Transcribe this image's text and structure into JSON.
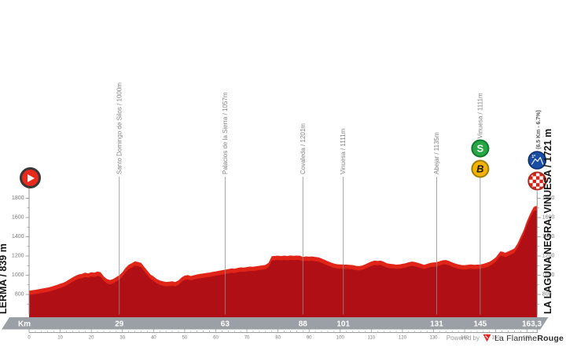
{
  "stage": {
    "start_label": "LERMA / 839 m",
    "finish_label": "LA LAGUNA NEGRA. VINUESA / 1721 m",
    "km_bar_label": "Km",
    "total_km_label": "163,3"
  },
  "footer": {
    "powered_by": "Powered by",
    "brand_regular": "La Flamme",
    "brand_bold": "Rouge"
  },
  "chart_data": {
    "type": "area",
    "title": "",
    "xlabel": "Km",
    "ylabel": "elevation (m)",
    "x_range_km": [
      0,
      163.3
    ],
    "ylim": [
      600,
      1900
    ],
    "y_ticks": [
      800,
      1000,
      1200,
      1400,
      1600,
      1800
    ],
    "x_major_ticks_km": [
      0,
      10,
      20,
      30,
      40,
      50,
      60,
      70,
      80,
      90,
      100,
      110,
      120,
      130,
      140,
      150,
      160
    ],
    "start": {
      "name": "Lerma",
      "elevation_m": 839,
      "km": 0
    },
    "finish": {
      "name": "La Laguna Negra. Vinuesa",
      "elevation_m": 1721,
      "km": 163.3,
      "final_climb_note": "(6.5 Km - 6.7%)"
    },
    "waypoints": [
      {
        "km": 29,
        "bar_label": "29",
        "label": "Santo Domingo de Silos / 1000m",
        "elevation_m": 1000,
        "icons": []
      },
      {
        "km": 63,
        "bar_label": "63",
        "label": "Palacios de la Sierra / 1057m",
        "elevation_m": 1057,
        "icons": []
      },
      {
        "km": 88,
        "bar_label": "88",
        "label": "Covaleda / 1201m",
        "elevation_m": 1201,
        "icons": []
      },
      {
        "km": 101,
        "bar_label": "101",
        "label": "Vinuesa / 1111m",
        "elevation_m": 1111,
        "icons": []
      },
      {
        "km": 131,
        "bar_label": "131",
        "label": "Abejar / 1135m",
        "elevation_m": 1135,
        "icons": []
      },
      {
        "km": 145,
        "bar_label": "145",
        "label": "Vinuesa / 1111m",
        "elevation_m": 1111,
        "icons": [
          "sprint",
          "bonus"
        ]
      },
      {
        "km": 163.3,
        "bar_label": "163,3",
        "label": "",
        "elevation_m": 1721,
        "icons": [
          "kom-cat1",
          "finish"
        ],
        "note": "(6.5 Km - 6.7%)",
        "kom_category": "1ª"
      }
    ],
    "profile_points": [
      [
        0,
        839
      ],
      [
        1,
        844
      ],
      [
        2,
        848
      ],
      [
        3,
        854
      ],
      [
        4,
        860
      ],
      [
        5,
        866
      ],
      [
        6,
        872
      ],
      [
        7,
        880
      ],
      [
        8,
        890
      ],
      [
        9,
        900
      ],
      [
        10,
        912
      ],
      [
        11,
        922
      ],
      [
        12,
        938
      ],
      [
        13,
        958
      ],
      [
        14,
        978
      ],
      [
        15,
        996
      ],
      [
        16,
        1008
      ],
      [
        17,
        1014
      ],
      [
        18,
        1026
      ],
      [
        19,
        1020
      ],
      [
        20,
        1032
      ],
      [
        21,
        1026
      ],
      [
        22,
        1038
      ],
      [
        23,
        1030
      ],
      [
        24,
        988
      ],
      [
        25,
        962
      ],
      [
        26,
        950
      ],
      [
        27,
        960
      ],
      [
        28,
        980
      ],
      [
        29,
        1000
      ],
      [
        30,
        1032
      ],
      [
        31,
        1076
      ],
      [
        32,
        1108
      ],
      [
        33,
        1124
      ],
      [
        34,
        1145
      ],
      [
        35,
        1138
      ],
      [
        36,
        1128
      ],
      [
        37,
        1088
      ],
      [
        38,
        1048
      ],
      [
        39,
        1008
      ],
      [
        40,
        988
      ],
      [
        41,
        962
      ],
      [
        42,
        946
      ],
      [
        43,
        936
      ],
      [
        44,
        930
      ],
      [
        45,
        932
      ],
      [
        46,
        936
      ],
      [
        47,
        930
      ],
      [
        48,
        946
      ],
      [
        49,
        976
      ],
      [
        50,
        996
      ],
      [
        51,
        1002
      ],
      [
        52,
        992
      ],
      [
        53,
        1000
      ],
      [
        54,
        1008
      ],
      [
        55,
        1014
      ],
      [
        56,
        1018
      ],
      [
        57,
        1024
      ],
      [
        58,
        1028
      ],
      [
        59,
        1034
      ],
      [
        60,
        1040
      ],
      [
        61,
        1046
      ],
      [
        62,
        1052
      ],
      [
        63,
        1057
      ],
      [
        64,
        1063
      ],
      [
        65,
        1070
      ],
      [
        66,
        1068
      ],
      [
        67,
        1075
      ],
      [
        68,
        1082
      ],
      [
        69,
        1080
      ],
      [
        70,
        1085
      ],
      [
        71,
        1090
      ],
      [
        72,
        1088
      ],
      [
        73,
        1093
      ],
      [
        74,
        1098
      ],
      [
        75,
        1102
      ],
      [
        76,
        1108
      ],
      [
        77,
        1130
      ],
      [
        78,
        1198
      ],
      [
        79,
        1201
      ],
      [
        80,
        1203
      ],
      [
        81,
        1199
      ],
      [
        82,
        1204
      ],
      [
        83,
        1200
      ],
      [
        84,
        1205
      ],
      [
        85,
        1202
      ],
      [
        86,
        1204
      ],
      [
        87,
        1203
      ],
      [
        88,
        1190
      ],
      [
        89,
        1196
      ],
      [
        90,
        1193
      ],
      [
        91,
        1195
      ],
      [
        92,
        1190
      ],
      [
        93,
        1185
      ],
      [
        94,
        1175
      ],
      [
        95,
        1160
      ],
      [
        96,
        1146
      ],
      [
        97,
        1132
      ],
      [
        98,
        1122
      ],
      [
        99,
        1114
      ],
      [
        100,
        1112
      ],
      [
        101,
        1111
      ],
      [
        102,
        1110
      ],
      [
        103,
        1108
      ],
      [
        104,
        1105
      ],
      [
        105,
        1098
      ],
      [
        106,
        1095
      ],
      [
        107,
        1100
      ],
      [
        108,
        1112
      ],
      [
        109,
        1128
      ],
      [
        110,
        1142
      ],
      [
        111,
        1152
      ],
      [
        112,
        1148
      ],
      [
        113,
        1152
      ],
      [
        114,
        1140
      ],
      [
        115,
        1125
      ],
      [
        116,
        1118
      ],
      [
        117,
        1115
      ],
      [
        118,
        1110
      ],
      [
        119,
        1112
      ],
      [
        120,
        1118
      ],
      [
        121,
        1124
      ],
      [
        122,
        1135
      ],
      [
        123,
        1142
      ],
      [
        124,
        1138
      ],
      [
        125,
        1128
      ],
      [
        126,
        1118
      ],
      [
        127,
        1108
      ],
      [
        128,
        1118
      ],
      [
        129,
        1128
      ],
      [
        130,
        1132
      ],
      [
        131,
        1135
      ],
      [
        132,
        1146
      ],
      [
        133,
        1156
      ],
      [
        134,
        1158
      ],
      [
        135,
        1148
      ],
      [
        136,
        1132
      ],
      [
        137,
        1122
      ],
      [
        138,
        1112
      ],
      [
        139,
        1106
      ],
      [
        140,
        1104
      ],
      [
        141,
        1108
      ],
      [
        142,
        1112
      ],
      [
        143,
        1108
      ],
      [
        144,
        1110
      ],
      [
        145,
        1111
      ],
      [
        146,
        1118
      ],
      [
        147,
        1128
      ],
      [
        148,
        1140
      ],
      [
        149,
        1160
      ],
      [
        150,
        1185
      ],
      [
        151,
        1228
      ],
      [
        151.5,
        1248
      ],
      [
        152.5,
        1242
      ],
      [
        153,
        1232
      ],
      [
        154,
        1248
      ],
      [
        155,
        1262
      ],
      [
        156,
        1278
      ],
      [
        157,
        1330
      ],
      [
        158,
        1400
      ],
      [
        159,
        1470
      ],
      [
        160,
        1560
      ],
      [
        161,
        1635
      ],
      [
        162,
        1700
      ],
      [
        162.5,
        1716
      ],
      [
        163.3,
        1721
      ]
    ],
    "legend": "none",
    "grid": "off",
    "colors": {
      "profile_top": "#e02418",
      "profile_body": "#b01015",
      "axis": "#8f8f8f",
      "tick_text": "#7a7a7a",
      "waypoint_label": "#848484",
      "km_bar": "#9aa0a5",
      "km_bar_text": "#ffffff",
      "sprint_green": "#28a745",
      "sprint_border": "#127a2f",
      "bonus_yellow": "#f4b301",
      "bonus_border": "#9e7c00",
      "kom_blue": "#1b4da4",
      "kom_border": "#0d2f6b",
      "finish_red": "#d3261b",
      "finish_ring": "#b0281e",
      "note_text": "#555555"
    }
  }
}
